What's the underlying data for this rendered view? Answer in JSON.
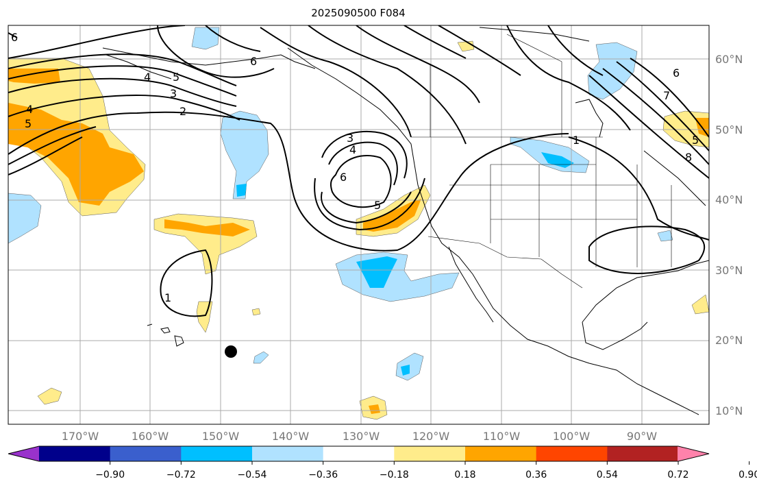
{
  "title": "2025090500 F084",
  "map": {
    "lat_labels": [
      "60°N",
      "50°N",
      "40°N",
      "30°N",
      "20°N",
      "10°N"
    ],
    "lon_labels": [
      "170°W",
      "160°W",
      "150°W",
      "140°W",
      "130°W",
      "120°W",
      "110°W",
      "100°W",
      "90°W"
    ],
    "contour_labels": [
      "6",
      "4",
      "5",
      "3",
      "2",
      "4",
      "5",
      "3",
      "4",
      "6",
      "5",
      "1",
      "1",
      "6",
      "7",
      "5",
      "8",
      "6"
    ],
    "station_marker": "filled-circle"
  },
  "colorbar": {
    "ticks": [
      "−0.90",
      "−0.72",
      "−0.54",
      "−0.36",
      "−0.18",
      "0.18",
      "0.36",
      "0.54",
      "0.72",
      "0.90"
    ],
    "colors": [
      "#9932cc",
      "#00008b",
      "#3a5fcd",
      "#00bfff",
      "#b0e2ff",
      "#ffffff",
      "#ffec8b",
      "#ffa500",
      "#ff4500",
      "#b22222",
      "#ff82ab"
    ]
  }
}
